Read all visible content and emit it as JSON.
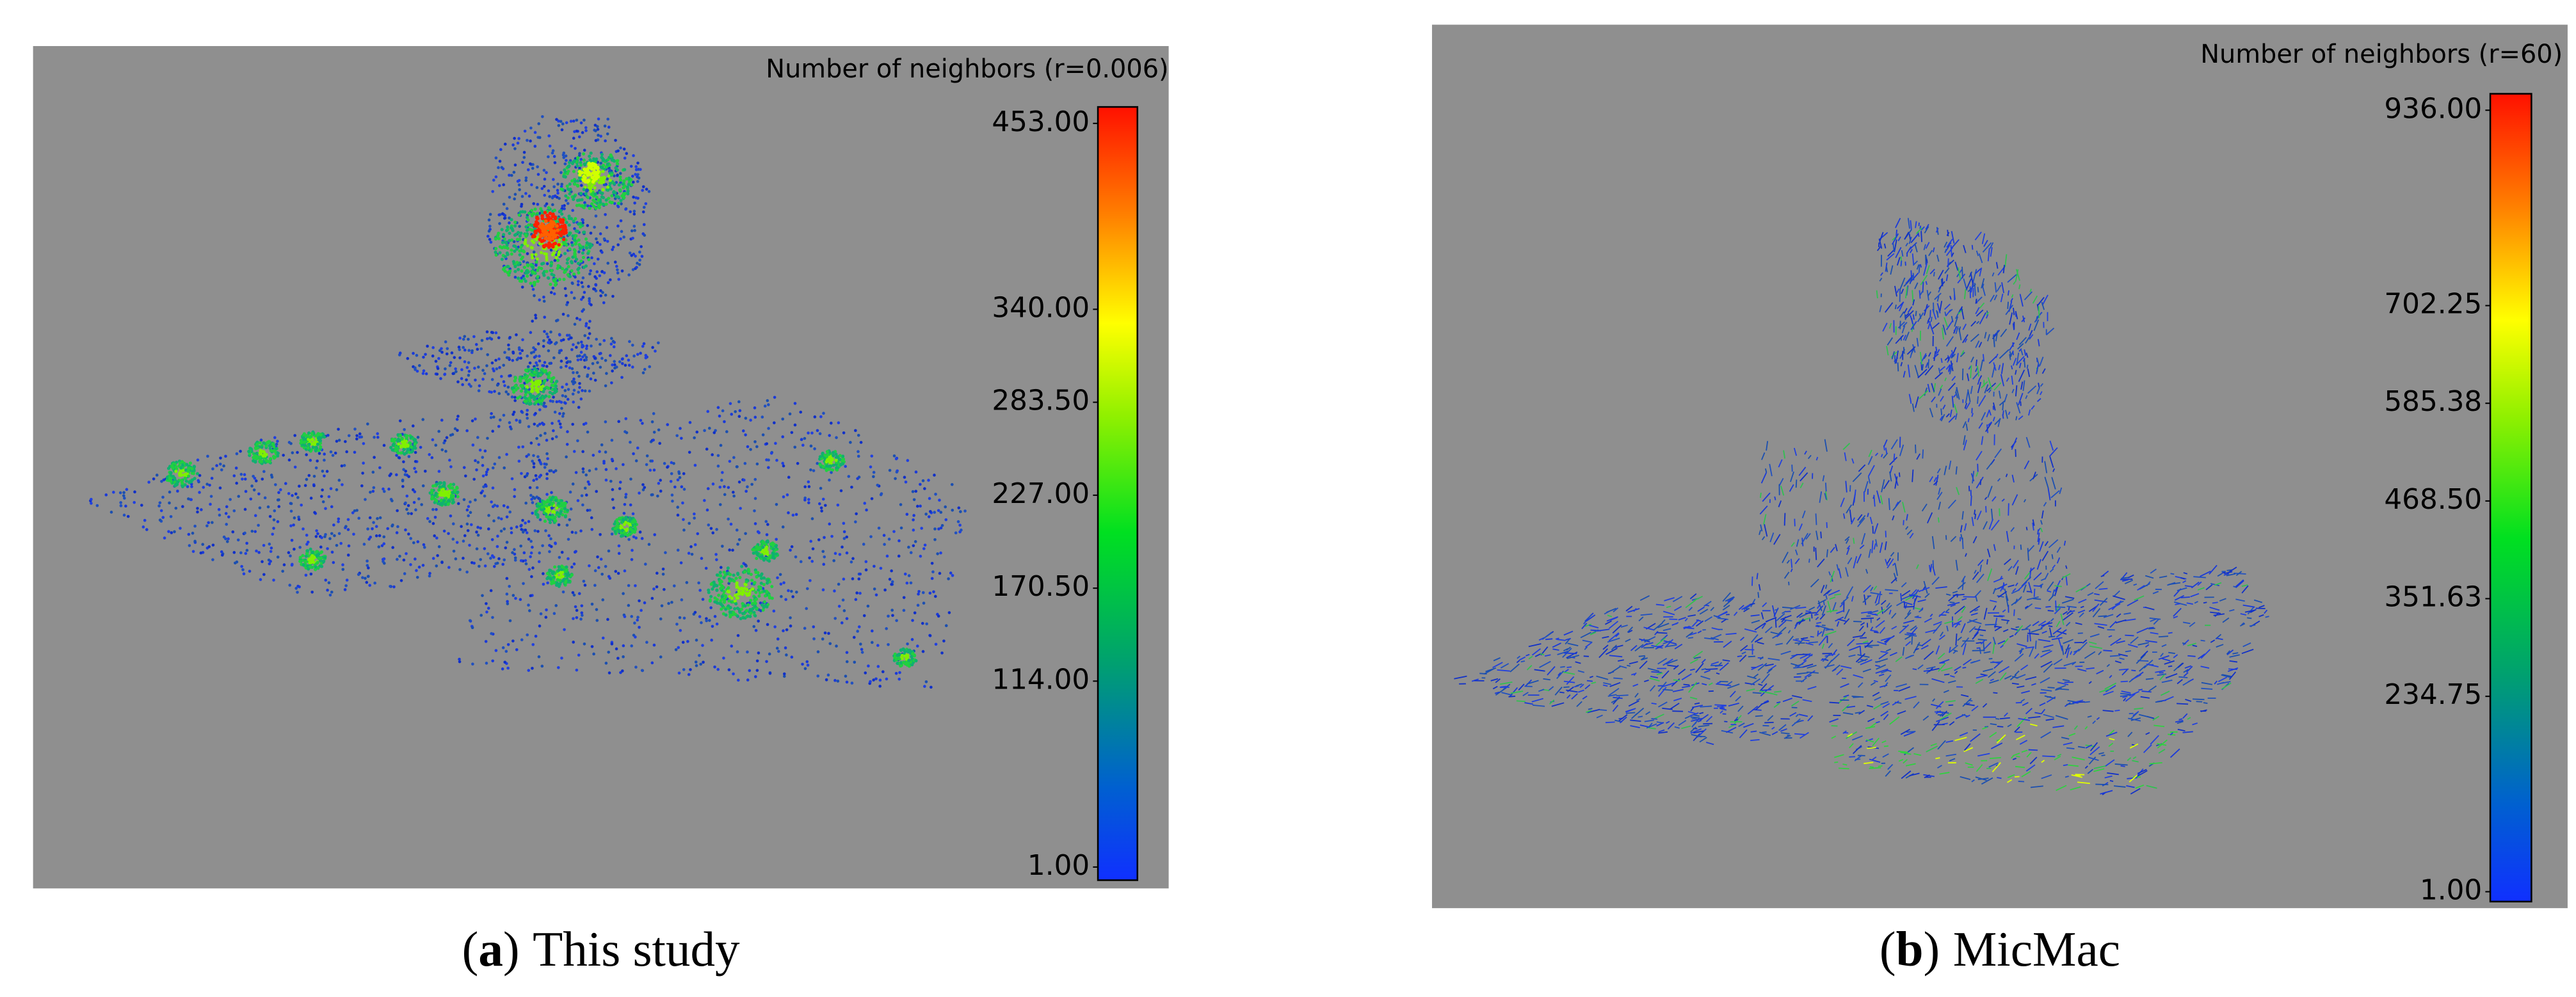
{
  "panels": [
    {
      "title": "Number of neighbors (r=0.006)",
      "colorbar": {
        "lim": [
          1,
          453
        ],
        "ticks": [
          {
            "value": 1,
            "label": "1.00"
          },
          {
            "value": 114,
            "label": "114.00"
          },
          {
            "value": 170.5,
            "label": "170.50"
          },
          {
            "value": 227,
            "label": "227.00"
          },
          {
            "value": 283.5,
            "label": "283.50"
          },
          {
            "value": 340,
            "label": "340.00"
          },
          {
            "value": 453,
            "label": "453.00"
          }
        ]
      },
      "caption": [
        "(",
        "a",
        ")",
        "This study"
      ]
    },
    {
      "title": "Number of neighbors (r=60)",
      "colorbar": {
        "lim": [
          1,
          936
        ],
        "ticks": [
          {
            "value": 1,
            "label": "1.00"
          },
          {
            "value": 234.75,
            "label": "234.75"
          },
          {
            "value": 351.63,
            "label": "351.63"
          },
          {
            "value": 468.5,
            "label": "468.50"
          },
          {
            "value": 585.38,
            "label": "585.38"
          },
          {
            "value": 702.25,
            "label": "702.25"
          },
          {
            "value": 936,
            "label": "936.00"
          }
        ]
      },
      "caption": [
        "(",
        "b",
        ")",
        "MicMac"
      ]
    }
  ]
}
